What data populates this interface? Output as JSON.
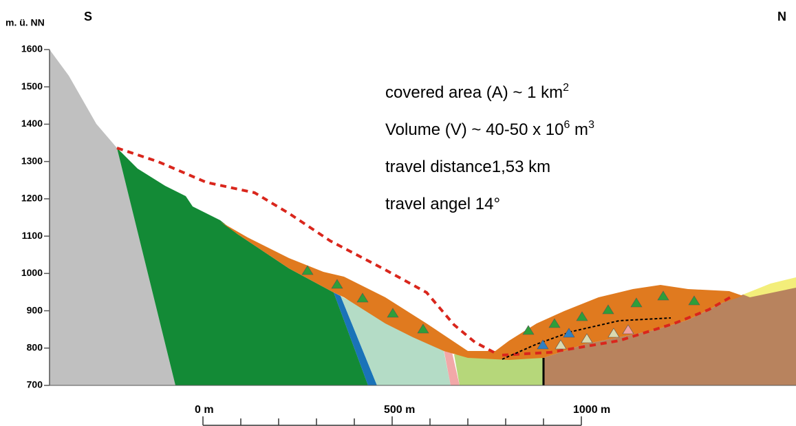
{
  "axis": {
    "unit_label": "m. ü. NN",
    "ticks": [
      700,
      800,
      900,
      1000,
      1100,
      1200,
      1300,
      1400,
      1500,
      1600
    ]
  },
  "compass": {
    "left": "S",
    "right": "N"
  },
  "annotations": [
    [
      {
        "text": "covered area (A) ~ 1 km"
      },
      {
        "sup": "2"
      }
    ],
    [
      {
        "text": "Volume (V) ~ 40-50 x 10"
      },
      {
        "sup": "6"
      },
      {
        "text": " m"
      },
      {
        "sup": "3"
      }
    ],
    [
      {
        "text": "travel distance1,53 km"
      }
    ],
    [
      {
        "text": "travel angel 14°"
      }
    ]
  ],
  "scale_bar": {
    "labels": [
      "0 m",
      "500 m",
      "1000 m"
    ]
  }
}
